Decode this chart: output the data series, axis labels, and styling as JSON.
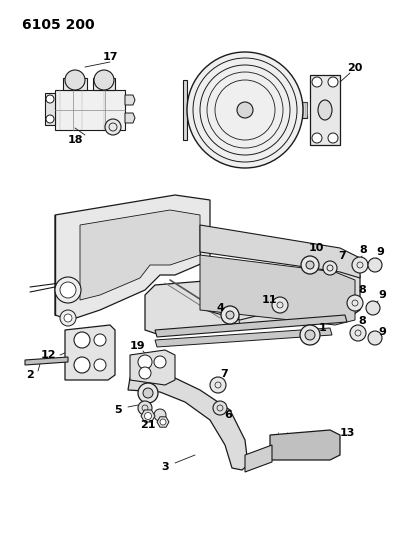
{
  "title": "6105 200",
  "bg_color": "#ffffff",
  "line_color": "#1a1a1a",
  "label_color": "#000000",
  "title_fontsize": 10,
  "label_fontsize": 8,
  "figsize": [
    4.1,
    5.33
  ],
  "dpi": 100
}
